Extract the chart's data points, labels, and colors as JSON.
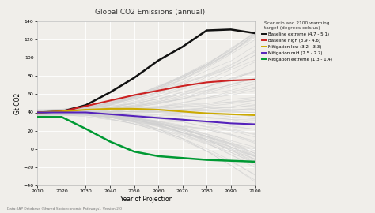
{
  "title": "Global CO2 Emissions (annual)",
  "xlabel": "Year of Projection",
  "ylabel": "Gt CO2",
  "footnote": "Data: IAP Database (Shared Socioeconomic Pathways). Version 2.0",
  "xlim": [
    2010,
    2100
  ],
  "ylim": [
    -40,
    140
  ],
  "yticks": [
    -40,
    -20,
    0,
    20,
    40,
    60,
    80,
    100,
    120,
    140
  ],
  "xticks": [
    2010,
    2020,
    2030,
    2040,
    2050,
    2060,
    2070,
    2080,
    2090,
    2100
  ],
  "legend_title": "Scenario and 2100 warming\ntarget (degrees celsius)",
  "scenarios": [
    {
      "label": "Baseline extreme (4.7 - 5.1)",
      "color": "#111111",
      "lw": 1.8,
      "x": [
        2010,
        2020,
        2030,
        2040,
        2050,
        2060,
        2070,
        2080,
        2090,
        2100
      ],
      "y": [
        40,
        41,
        48,
        62,
        78,
        97,
        112,
        130,
        131,
        127
      ]
    },
    {
      "label": "Baseline high (3.9 - 4.6)",
      "color": "#cc2222",
      "lw": 1.5,
      "x": [
        2010,
        2020,
        2030,
        2040,
        2050,
        2060,
        2070,
        2080,
        2090,
        2100
      ],
      "y": [
        40,
        41,
        47,
        53,
        59,
        64,
        69,
        73,
        75,
        76
      ]
    },
    {
      "label": "Mitigation low (3.2 - 3.3)",
      "color": "#ccaa00",
      "lw": 1.5,
      "x": [
        2010,
        2020,
        2030,
        2040,
        2050,
        2060,
        2070,
        2080,
        2090,
        2100
      ],
      "y": [
        40,
        41,
        43,
        44,
        44,
        43,
        41,
        39,
        38,
        37
      ]
    },
    {
      "label": "Mitigation mid (2.5 - 2.7)",
      "color": "#5522bb",
      "lw": 1.5,
      "x": [
        2010,
        2020,
        2030,
        2040,
        2050,
        2060,
        2070,
        2080,
        2090,
        2100
      ],
      "y": [
        40,
        40,
        40,
        38,
        36,
        34,
        32,
        30,
        28,
        27
      ]
    },
    {
      "label": "Mitigation extreme (1.3 - 1.4)",
      "color": "#009933",
      "lw": 1.8,
      "x": [
        2010,
        2020,
        2030,
        2040,
        2050,
        2060,
        2070,
        2080,
        2090,
        2100
      ],
      "y": [
        35,
        35,
        22,
        8,
        -3,
        -8,
        -10,
        -12,
        -13,
        -14
      ]
    }
  ],
  "bg_color": "#f0eeea",
  "plot_bg": "#f0eeea",
  "grid_color": "#ffffff",
  "num_bg_lines": 80
}
